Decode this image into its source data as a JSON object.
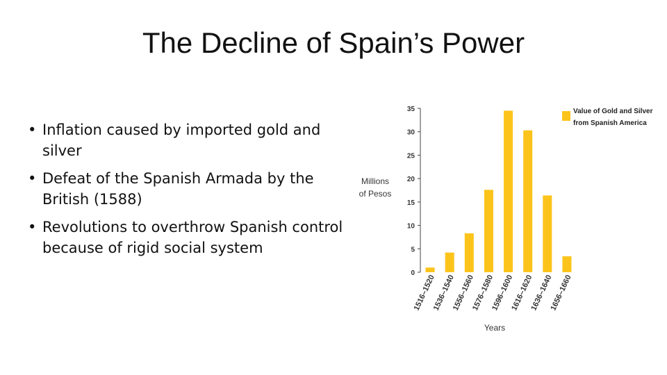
{
  "slide": {
    "title": "The Decline of Spain’s Power",
    "bullets": [
      "Inflation caused by imported gold and silver",
      "Defeat of the Spanish Armada by the British (1588)",
      "Revolutions to overthrow Spanish control because of rigid social system"
    ]
  },
  "chart_data": {
    "type": "bar",
    "categories": [
      "1516–1520",
      "1536–1540",
      "1556–1560",
      "1576–1580",
      "1596–1600",
      "1616–1620",
      "1636–1640",
      "1656–1660"
    ],
    "values": [
      1,
      4.2,
      8.3,
      17.6,
      34.5,
      30.3,
      16.4,
      3.4
    ],
    "series_name": "Value of Gold and Silver from Spanish America",
    "legend_lines": [
      "Value of Gold and Silver",
      "from Spanish America"
    ],
    "ylabel_lines": [
      "Millions",
      "of Pesos"
    ],
    "xlabel": "Years",
    "ylim": [
      0,
      35
    ],
    "yticks": [
      0,
      5,
      10,
      15,
      20,
      25,
      30,
      35
    ],
    "bar_color": "#FCC41B",
    "grid": false,
    "legend_position": "top-right"
  }
}
